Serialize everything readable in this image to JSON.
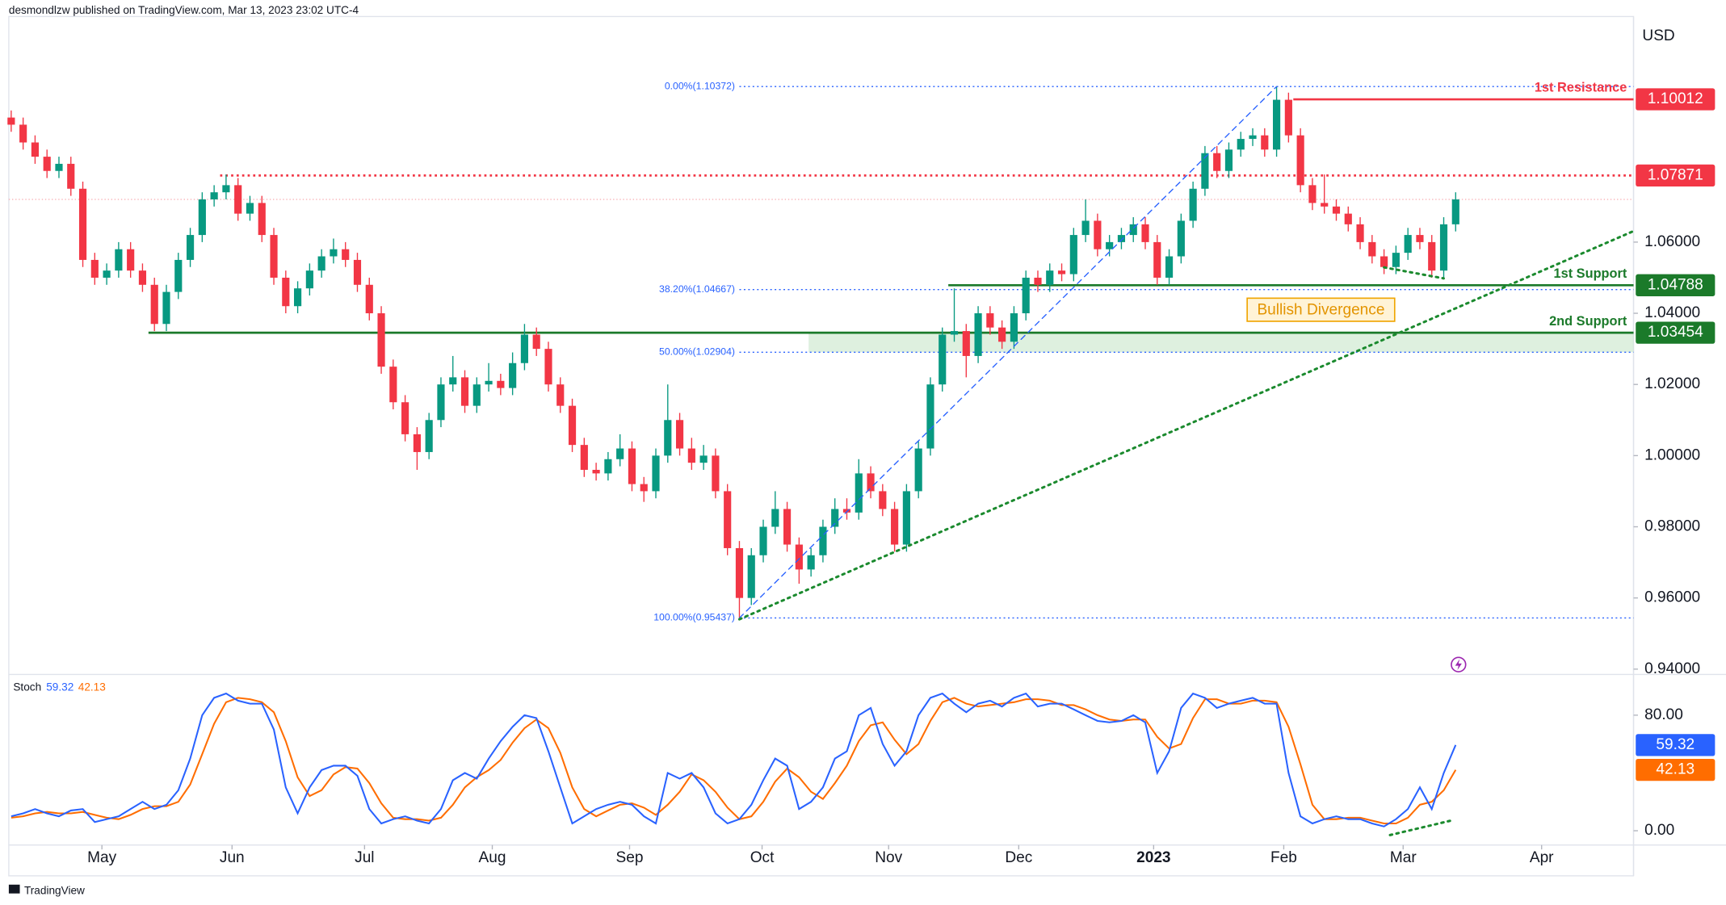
{
  "header": "desmondlzw published on TradingView.com, Mar 13, 2023 23:02 UTC-4",
  "brand": "TradingView",
  "chart_data": [
    {
      "type": "candlestick",
      "currency": "USD",
      "up_color": "#089981",
      "down_color": "#f23645",
      "xlim": [
        -0.2,
        135.9
      ],
      "xticks": [
        {
          "value": 7.6,
          "label": "May"
        },
        {
          "value": 18.5,
          "label": "Jun"
        },
        {
          "value": 29.6,
          "label": "Jul"
        },
        {
          "value": 40.3,
          "label": "Aug"
        },
        {
          "value": 51.8,
          "label": "Sep"
        },
        {
          "value": 62.9,
          "label": "Oct"
        },
        {
          "value": 73.5,
          "label": "Nov"
        },
        {
          "value": 84.4,
          "label": "Dec"
        },
        {
          "value": 95.7,
          "label": "2023"
        },
        {
          "value": 106.6,
          "label": "Feb"
        },
        {
          "value": 116.6,
          "label": "Mar"
        },
        {
          "value": 128.2,
          "label": "Apr"
        }
      ],
      "ylim": [
        0.9388,
        1.1234
      ],
      "yticks": [
        {
          "value": 0.94,
          "label": "0.94000"
        },
        {
          "value": 0.96,
          "label": "0.96000"
        },
        {
          "value": 0.98,
          "label": "0.98000"
        },
        {
          "value": 1.0,
          "label": "1.00000"
        },
        {
          "value": 1.02,
          "label": "1.02000"
        },
        {
          "value": 1.04,
          "label": "1.04000"
        },
        {
          "value": 1.06,
          "label": "1.06000"
        }
      ],
      "candles": [
        [
          1.095,
          1.097,
          1.091,
          1.093
        ],
        [
          1.093,
          1.095,
          1.086,
          1.088
        ],
        [
          1.088,
          1.09,
          1.082,
          1.084
        ],
        [
          1.084,
          1.086,
          1.078,
          1.08
        ],
        [
          1.08,
          1.084,
          1.078,
          1.082
        ],
        [
          1.082,
          1.084,
          1.073,
          1.075
        ],
        [
          1.075,
          1.077,
          1.053,
          1.055
        ],
        [
          1.055,
          1.057,
          1.048,
          1.05
        ],
        [
          1.05,
          1.054,
          1.048,
          1.052
        ],
        [
          1.052,
          1.06,
          1.05,
          1.058
        ],
        [
          1.058,
          1.06,
          1.05,
          1.052
        ],
        [
          1.052,
          1.054,
          1.046,
          1.048
        ],
        [
          1.048,
          1.05,
          1.035,
          1.037
        ],
        [
          1.037,
          1.048,
          1.035,
          1.046
        ],
        [
          1.046,
          1.057,
          1.044,
          1.055
        ],
        [
          1.055,
          1.064,
          1.053,
          1.062
        ],
        [
          1.062,
          1.074,
          1.06,
          1.072
        ],
        [
          1.072,
          1.076,
          1.07,
          1.074
        ],
        [
          1.074,
          1.079,
          1.072,
          1.076
        ],
        [
          1.076,
          1.078,
          1.066,
          1.068
        ],
        [
          1.068,
          1.073,
          1.066,
          1.071
        ],
        [
          1.071,
          1.073,
          1.06,
          1.062
        ],
        [
          1.062,
          1.064,
          1.048,
          1.05
        ],
        [
          1.05,
          1.052,
          1.04,
          1.042
        ],
        [
          1.042,
          1.049,
          1.04,
          1.047
        ],
        [
          1.047,
          1.054,
          1.045,
          1.052
        ],
        [
          1.052,
          1.058,
          1.05,
          1.056
        ],
        [
          1.056,
          1.061,
          1.054,
          1.058
        ],
        [
          1.058,
          1.06,
          1.053,
          1.055
        ],
        [
          1.055,
          1.057,
          1.046,
          1.048
        ],
        [
          1.048,
          1.05,
          1.038,
          1.04
        ],
        [
          1.04,
          1.042,
          1.023,
          1.025
        ],
        [
          1.025,
          1.027,
          1.013,
          1.015
        ],
        [
          1.015,
          1.017,
          1.004,
          1.006
        ],
        [
          1.006,
          1.008,
          0.996,
          1.001
        ],
        [
          1.001,
          1.012,
          0.999,
          1.01
        ],
        [
          1.01,
          1.022,
          1.008,
          1.02
        ],
        [
          1.02,
          1.028,
          1.018,
          1.022
        ],
        [
          1.022,
          1.024,
          1.012,
          1.014
        ],
        [
          1.014,
          1.022,
          1.012,
          1.02
        ],
        [
          1.02,
          1.026,
          1.018,
          1.021
        ],
        [
          1.021,
          1.023,
          1.017,
          1.019
        ],
        [
          1.019,
          1.029,
          1.017,
          1.026
        ],
        [
          1.026,
          1.037,
          1.024,
          1.034
        ],
        [
          1.034,
          1.036,
          1.028,
          1.03
        ],
        [
          1.03,
          1.032,
          1.018,
          1.02
        ],
        [
          1.02,
          1.022,
          1.012,
          1.014
        ],
        [
          1.014,
          1.016,
          1.001,
          1.003
        ],
        [
          1.003,
          1.005,
          0.994,
          0.996
        ],
        [
          0.996,
          0.998,
          0.993,
          0.995
        ],
        [
          0.995,
          1.001,
          0.993,
          0.999
        ],
        [
          0.999,
          1.006,
          0.997,
          1.002
        ],
        [
          1.002,
          1.004,
          0.99,
          0.992
        ],
        [
          0.992,
          0.994,
          0.987,
          0.99
        ],
        [
          0.99,
          1.002,
          0.988,
          1.0
        ],
        [
          1.0,
          1.02,
          0.998,
          1.01
        ],
        [
          1.01,
          1.012,
          1.0,
          1.002
        ],
        [
          1.002,
          1.005,
          0.996,
          0.998
        ],
        [
          0.998,
          1.003,
          0.996,
          1.0
        ],
        [
          1.0,
          1.002,
          0.988,
          0.99
        ],
        [
          0.99,
          0.992,
          0.972,
          0.974
        ],
        [
          0.974,
          0.976,
          0.954,
          0.96
        ],
        [
          0.96,
          0.974,
          0.958,
          0.972
        ],
        [
          0.972,
          0.982,
          0.97,
          0.98
        ],
        [
          0.98,
          0.99,
          0.978,
          0.985
        ],
        [
          0.985,
          0.987,
          0.973,
          0.975
        ],
        [
          0.975,
          0.977,
          0.964,
          0.968
        ],
        [
          0.968,
          0.974,
          0.966,
          0.972
        ],
        [
          0.972,
          0.982,
          0.97,
          0.98
        ],
        [
          0.98,
          0.988,
          0.978,
          0.985
        ],
        [
          0.985,
          0.988,
          0.982,
          0.984
        ],
        [
          0.984,
          0.999,
          0.982,
          0.995
        ],
        [
          0.995,
          0.997,
          0.988,
          0.99
        ],
        [
          0.99,
          0.992,
          0.983,
          0.985
        ],
        [
          0.985,
          0.987,
          0.973,
          0.975
        ],
        [
          0.975,
          0.992,
          0.973,
          0.99
        ],
        [
          0.99,
          1.004,
          0.988,
          1.002
        ],
        [
          1.002,
          1.022,
          1.0,
          1.02
        ],
        [
          1.02,
          1.036,
          1.018,
          1.034
        ],
        [
          1.034,
          1.047,
          1.032,
          1.035
        ],
        [
          1.035,
          1.037,
          1.022,
          1.028
        ],
        [
          1.028,
          1.042,
          1.026,
          1.04
        ],
        [
          1.04,
          1.042,
          1.034,
          1.036
        ],
        [
          1.036,
          1.038,
          1.03,
          1.032
        ],
        [
          1.032,
          1.042,
          1.03,
          1.04
        ],
        [
          1.04,
          1.052,
          1.038,
          1.05
        ],
        [
          1.05,
          1.052,
          1.046,
          1.048
        ],
        [
          1.048,
          1.054,
          1.046,
          1.052
        ],
        [
          1.052,
          1.054,
          1.049,
          1.051
        ],
        [
          1.051,
          1.064,
          1.049,
          1.062
        ],
        [
          1.062,
          1.072,
          1.06,
          1.066
        ],
        [
          1.066,
          1.068,
          1.056,
          1.058
        ],
        [
          1.058,
          1.062,
          1.056,
          1.06
        ],
        [
          1.06,
          1.064,
          1.058,
          1.062
        ],
        [
          1.062,
          1.067,
          1.06,
          1.065
        ],
        [
          1.065,
          1.067,
          1.058,
          1.06
        ],
        [
          1.06,
          1.062,
          1.048,
          1.05
        ],
        [
          1.05,
          1.058,
          1.048,
          1.056
        ],
        [
          1.056,
          1.068,
          1.054,
          1.066
        ],
        [
          1.066,
          1.077,
          1.064,
          1.075
        ],
        [
          1.075,
          1.087,
          1.073,
          1.085
        ],
        [
          1.085,
          1.087,
          1.078,
          1.08
        ],
        [
          1.08,
          1.088,
          1.078,
          1.086
        ],
        [
          1.086,
          1.091,
          1.084,
          1.089
        ],
        [
          1.089,
          1.092,
          1.087,
          1.09
        ],
        [
          1.09,
          1.092,
          1.084,
          1.086
        ],
        [
          1.086,
          1.1037,
          1.084,
          1.1
        ],
        [
          1.1,
          1.102,
          1.088,
          1.09
        ],
        [
          1.09,
          1.092,
          1.074,
          1.076
        ],
        [
          1.076,
          1.078,
          1.069,
          1.071
        ],
        [
          1.071,
          1.079,
          1.068,
          1.07
        ],
        [
          1.07,
          1.072,
          1.066,
          1.068
        ],
        [
          1.068,
          1.07,
          1.063,
          1.065
        ],
        [
          1.065,
          1.067,
          1.058,
          1.06
        ],
        [
          1.06,
          1.062,
          1.054,
          1.056
        ],
        [
          1.056,
          1.058,
          1.051,
          1.053
        ],
        [
          1.053,
          1.059,
          1.051,
          1.057
        ],
        [
          1.057,
          1.064,
          1.055,
          1.062
        ],
        [
          1.062,
          1.064,
          1.058,
          1.06
        ],
        [
          1.06,
          1.062,
          1.05,
          1.052
        ],
        [
          1.052,
          1.067,
          1.05,
          1.065
        ],
        [
          1.065,
          1.074,
          1.063,
          1.072
        ]
      ],
      "levels": [
        {
          "name": "1st Resistance",
          "value": 1.10012,
          "label": "1.10012",
          "start": 107.4,
          "color": "#f23645",
          "style": "solid"
        },
        {
          "value": 1.07871,
          "label": "1.07871",
          "start": 17.5,
          "color": "#f23645",
          "style": "dotted"
        },
        {
          "name": "1st Support",
          "value": 1.04788,
          "label": "1.04788",
          "start": 78.5,
          "color": "#1b7a2a",
          "style": "solid"
        },
        {
          "name": "2nd Support",
          "value": 1.03454,
          "label": "1.03454",
          "start": 11.5,
          "color": "#1b7a2a",
          "style": "solid"
        }
      ],
      "fib_levels": [
        {
          "label": "0.00%(1.10372)",
          "value": 1.10372
        },
        {
          "label": "38.20%(1.04667)",
          "value": 1.04667
        },
        {
          "label": "50.00%(1.02904)",
          "value": 1.02904
        },
        {
          "label": "100.00%(0.95437)",
          "value": 0.95437
        }
      ],
      "fib_start": 61,
      "zone": {
        "start": 66.8,
        "top": 1.03454,
        "bottom": 1.02904,
        "color": "#c8e6c9"
      },
      "lines": [
        {
          "x": [
            61,
            106
          ],
          "y": [
            0.95437,
            1.10372
          ],
          "color": "#2962ff",
          "style": "dashed"
        },
        {
          "x": [
            61,
            135.9
          ],
          "y": [
            0.954,
            1.0631
          ],
          "color": "#1b8a2e",
          "style": "dotted"
        },
        {
          "x": [
            115,
            120
          ],
          "y": [
            1.0529,
            1.0498
          ],
          "color": "#1b8a2e",
          "style": "dotted"
        }
      ],
      "annotations": [
        "Bullish Divergence"
      ]
    },
    {
      "type": "line",
      "title": "Stoch",
      "xlim": [
        -0.2,
        135.9
      ],
      "ylim": [
        -9.9,
        107.4
      ],
      "yticks": [
        {
          "value": 80,
          "label": "80.00"
        },
        {
          "value": 0,
          "label": "0.00"
        }
      ],
      "series": [
        {
          "color": "#2962ff",
          "values": [
            10,
            12,
            15,
            12,
            10,
            14,
            15,
            6,
            8,
            10,
            15,
            20,
            15,
            18,
            28,
            50,
            80,
            92,
            95,
            90,
            88,
            88,
            70,
            30,
            12,
            30,
            42,
            45,
            45,
            38,
            15,
            5,
            8,
            10,
            7,
            5,
            15,
            35,
            40,
            36,
            50,
            62,
            72,
            80,
            78,
            55,
            30,
            5,
            10,
            15,
            18,
            20,
            18,
            10,
            5,
            40,
            36,
            40,
            30,
            12,
            5,
            8,
            18,
            35,
            50,
            45,
            15,
            20,
            30,
            50,
            55,
            80,
            85,
            60,
            45,
            55,
            80,
            92,
            95,
            88,
            82,
            88,
            90,
            86,
            92,
            95,
            86,
            88,
            88,
            84,
            80,
            76,
            75,
            76,
            80,
            75,
            40,
            55,
            85,
            95,
            92,
            85,
            88,
            90,
            92,
            88,
            88,
            40,
            10,
            5,
            8,
            10,
            8,
            8,
            5,
            3,
            8,
            15,
            30,
            15,
            40,
            59.32
          ]
        },
        {
          "color": "#ff6d00",
          "values": [
            9,
            10,
            12,
            13,
            12,
            12,
            13,
            11,
            9,
            8,
            11,
            15,
            17,
            17,
            20,
            32,
            53,
            74,
            89,
            92,
            91,
            89,
            82,
            62,
            37,
            24,
            28,
            39,
            44,
            43,
            33,
            19,
            9,
            8,
            8,
            7,
            9,
            18,
            30,
            37,
            42,
            49,
            61,
            71,
            77,
            71,
            54,
            30,
            15,
            10,
            14,
            18,
            19,
            16,
            11,
            18,
            27,
            39,
            35,
            27,
            16,
            8,
            10,
            20,
            34,
            43,
            37,
            27,
            22,
            33,
            45,
            62,
            73,
            75,
            63,
            53,
            60,
            76,
            89,
            92,
            88,
            86,
            87,
            88,
            89,
            91,
            91,
            90,
            87,
            87,
            84,
            80,
            77,
            76,
            77,
            77,
            65,
            57,
            60,
            78,
            91,
            91,
            88,
            88,
            90,
            90,
            89,
            72,
            46,
            18,
            8,
            8,
            9,
            9,
            7,
            5,
            5,
            9,
            18,
            20,
            28,
            42.13
          ]
        }
      ],
      "lines": [
        {
          "x": [
            115.5,
            120.6
          ],
          "y": [
            -3,
            7
          ],
          "color": "#1b8a2e",
          "style": "dotted"
        }
      ]
    }
  ]
}
